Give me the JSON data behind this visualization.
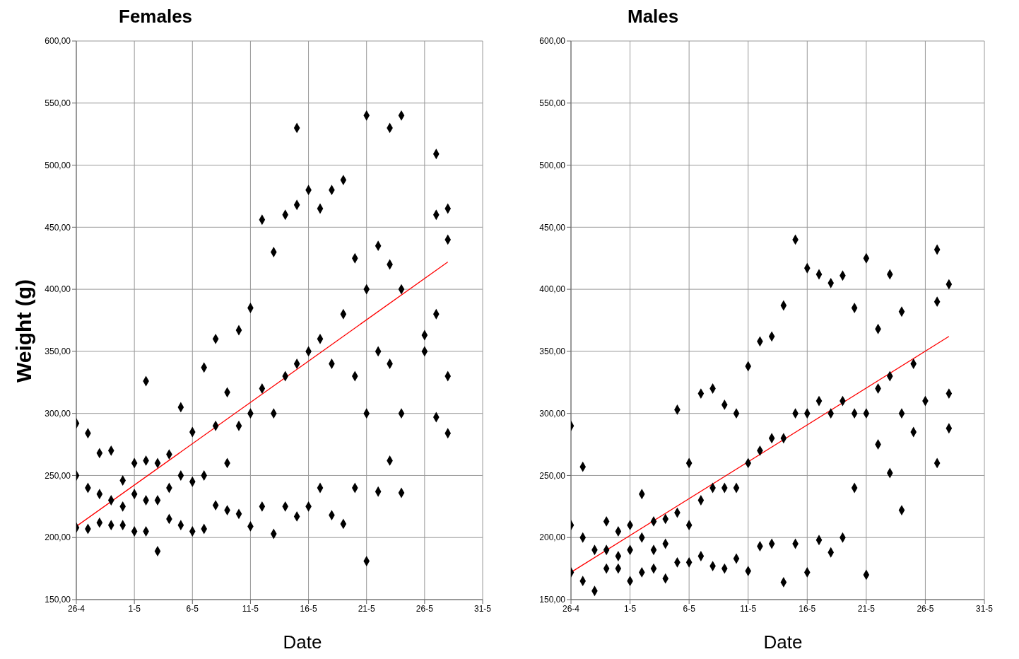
{
  "chart_data": [
    {
      "type": "scatter",
      "title": "Females",
      "xlabel": "Date",
      "ylabel": "Weight (g)",
      "xlim": [
        "--04-26",
        "--05-31"
      ],
      "xticks": [
        {
          "value": "--04-26",
          "label": "26-4"
        },
        {
          "value": "--05-01",
          "label": "1-5"
        },
        {
          "value": "--05-06",
          "label": "6-5"
        },
        {
          "value": "--05-11",
          "label": "11-5"
        },
        {
          "value": "--05-16",
          "label": "16-5"
        },
        {
          "value": "--05-21",
          "label": "21-5"
        },
        {
          "value": "--05-26",
          "label": "26-5"
        },
        {
          "value": "--05-31",
          "label": "31-5"
        }
      ],
      "ylim": [
        150,
        600
      ],
      "yticks": [
        {
          "value": 150,
          "label": "150,00"
        },
        {
          "value": 200,
          "label": "200,00"
        },
        {
          "value": 250,
          "label": "250,00"
        },
        {
          "value": 300,
          "label": "300,00"
        },
        {
          "value": 350,
          "label": "350,00"
        },
        {
          "value": 400,
          "label": "400,00"
        },
        {
          "value": 450,
          "label": "450,00"
        },
        {
          "value": 500,
          "label": "500,00"
        },
        {
          "value": 550,
          "label": "550,00"
        },
        {
          "value": 600,
          "label": "600,00"
        }
      ],
      "grid": true,
      "line_style": "solid",
      "series": [
        {
          "marker": "diamond",
          "color": "#000000",
          "x": [
            "--04-26",
            "--04-26",
            "--04-26",
            "--04-27",
            "--04-27",
            "--04-27",
            "--04-28",
            "--04-28",
            "--04-28",
            "--04-29",
            "--04-29",
            "--04-29",
            "--04-30",
            "--04-30",
            "--04-30",
            "--05-01",
            "--05-01",
            "--05-01",
            "--05-02",
            "--05-02",
            "--05-02",
            "--05-02",
            "--05-03",
            "--05-03",
            "--05-03",
            "--05-04",
            "--05-04",
            "--05-04",
            "--05-05",
            "--05-05",
            "--05-05",
            "--05-06",
            "--05-06",
            "--05-06",
            "--05-07",
            "--05-07",
            "--05-07",
            "--05-08",
            "--05-08",
            "--05-08",
            "--05-09",
            "--05-09",
            "--05-09",
            "--05-10",
            "--05-10",
            "--05-10",
            "--05-11",
            "--05-11",
            "--05-11",
            "--05-12",
            "--05-12",
            "--05-12",
            "--05-13",
            "--05-13",
            "--05-13",
            "--05-14",
            "--05-14",
            "--05-14",
            "--05-15",
            "--05-15",
            "--05-15",
            "--05-15",
            "--05-16",
            "--05-16",
            "--05-16",
            "--05-17",
            "--05-17",
            "--05-17",
            "--05-18",
            "--05-18",
            "--05-18",
            "--05-19",
            "--05-19",
            "--05-19",
            "--05-20",
            "--05-20",
            "--05-20",
            "--05-21",
            "--05-21",
            "--05-21",
            "--05-21",
            "--05-22",
            "--05-22",
            "--05-22",
            "--05-23",
            "--05-23",
            "--05-23",
            "--05-23",
            "--05-24",
            "--05-24",
            "--05-24",
            "--05-24",
            "--05-26",
            "--05-26",
            "--05-27",
            "--05-27",
            "--05-27",
            "--05-27",
            "--05-28",
            "--05-28",
            "--05-28",
            "--05-28"
          ],
          "values": [
            292,
            250,
            208,
            284,
            240,
            207,
            268,
            235,
            212,
            270,
            230,
            210,
            246,
            225,
            210,
            260,
            235,
            205,
            326,
            262,
            230,
            205,
            260,
            230,
            189,
            267,
            240,
            215,
            305,
            250,
            210,
            285,
            245,
            205,
            337,
            250,
            207,
            360,
            290,
            226,
            317,
            260,
            222,
            367,
            290,
            219,
            385,
            300,
            209,
            456,
            320,
            225,
            430,
            300,
            203,
            460,
            330,
            225,
            530,
            468,
            340,
            217,
            480,
            350,
            225,
            465,
            360,
            240,
            480,
            340,
            218,
            488,
            380,
            211,
            425,
            330,
            240,
            540,
            400,
            300,
            181,
            435,
            350,
            237,
            530,
            420,
            340,
            262,
            540,
            400,
            300,
            236,
            363,
            350,
            509,
            460,
            380,
            297,
            465,
            440,
            330,
            284
          ]
        },
        {
          "type": "line",
          "marker": "none",
          "color": "#ff0000",
          "x": [
            "--04-26",
            "--05-28"
          ],
          "values": [
            209,
            422
          ]
        }
      ]
    },
    {
      "type": "scatter",
      "title": "Males",
      "xlabel": "Date",
      "xlim": [
        "--04-26",
        "--05-31"
      ],
      "xticks": [
        {
          "value": "--04-26",
          "label": "26-4"
        },
        {
          "value": "--05-01",
          "label": "1-5"
        },
        {
          "value": "--05-06",
          "label": "6-5"
        },
        {
          "value": "--05-11",
          "label": "11-5"
        },
        {
          "value": "--05-16",
          "label": "16-5"
        },
        {
          "value": "--05-21",
          "label": "21-5"
        },
        {
          "value": "--05-26",
          "label": "26-5"
        },
        {
          "value": "--05-31",
          "label": "31-5"
        }
      ],
      "ylim": [
        150,
        600
      ],
      "yticks": [
        {
          "value": 150,
          "label": "150,00"
        },
        {
          "value": 200,
          "label": "200,00"
        },
        {
          "value": 250,
          "label": "250,00"
        },
        {
          "value": 300,
          "label": "300,00"
        },
        {
          "value": 350,
          "label": "350,00"
        },
        {
          "value": 400,
          "label": "400,00"
        },
        {
          "value": 450,
          "label": "450,00"
        },
        {
          "value": 500,
          "label": "500,00"
        },
        {
          "value": 550,
          "label": "550,00"
        },
        {
          "value": 600,
          "label": "600,00"
        }
      ],
      "grid": true,
      "line_style": "solid",
      "series": [
        {
          "marker": "diamond",
          "color": "#000000",
          "x": [
            "--04-26",
            "--04-26",
            "--04-26",
            "--04-27",
            "--04-27",
            "--04-27",
            "--04-28",
            "--04-28",
            "--04-29",
            "--04-29",
            "--04-29",
            "--04-30",
            "--04-30",
            "--04-30",
            "--05-01",
            "--05-01",
            "--05-01",
            "--05-02",
            "--05-02",
            "--05-02",
            "--05-03",
            "--05-03",
            "--05-03",
            "--05-04",
            "--05-04",
            "--05-04",
            "--05-05",
            "--05-05",
            "--05-05",
            "--05-06",
            "--05-06",
            "--05-06",
            "--05-07",
            "--05-07",
            "--05-07",
            "--05-08",
            "--05-08",
            "--05-08",
            "--05-09",
            "--05-09",
            "--05-09",
            "--05-10",
            "--05-10",
            "--05-10",
            "--05-11",
            "--05-11",
            "--05-11",
            "--05-12",
            "--05-12",
            "--05-12",
            "--05-13",
            "--05-13",
            "--05-13",
            "--05-14",
            "--05-14",
            "--05-14",
            "--05-15",
            "--05-15",
            "--05-15",
            "--05-16",
            "--05-16",
            "--05-16",
            "--05-17",
            "--05-17",
            "--05-17",
            "--05-18",
            "--05-18",
            "--05-18",
            "--05-19",
            "--05-19",
            "--05-19",
            "--05-20",
            "--05-20",
            "--05-20",
            "--05-21",
            "--05-21",
            "--05-21",
            "--05-22",
            "--05-22",
            "--05-22",
            "--05-23",
            "--05-23",
            "--05-23",
            "--05-24",
            "--05-24",
            "--05-24",
            "--05-25",
            "--05-25",
            "--05-26",
            "--05-27",
            "--05-27",
            "--05-27",
            "--05-28",
            "--05-28",
            "--05-28"
          ],
          "values": [
            290,
            210,
            172,
            257,
            200,
            165,
            190,
            157,
            213,
            190,
            175,
            205,
            185,
            175,
            210,
            190,
            165,
            235,
            200,
            172,
            213,
            190,
            175,
            215,
            195,
            167,
            303,
            220,
            180,
            260,
            210,
            180,
            316,
            230,
            185,
            320,
            240,
            177,
            307,
            240,
            175,
            300,
            240,
            183,
            338,
            260,
            173,
            358,
            270,
            193,
            362,
            280,
            195,
            387,
            280,
            164,
            440,
            300,
            195,
            417,
            300,
            172,
            412,
            310,
            198,
            405,
            300,
            188,
            411,
            310,
            200,
            385,
            300,
            240,
            425,
            300,
            170,
            368,
            320,
            275,
            412,
            330,
            252,
            382,
            300,
            222,
            340,
            285,
            310,
            432,
            390,
            260,
            404,
            316,
            288
          ]
        },
        {
          "type": "line",
          "marker": "none",
          "color": "#ff0000",
          "x": [
            "--04-26",
            "--05-28"
          ],
          "values": [
            172,
            362
          ]
        }
      ]
    }
  ]
}
